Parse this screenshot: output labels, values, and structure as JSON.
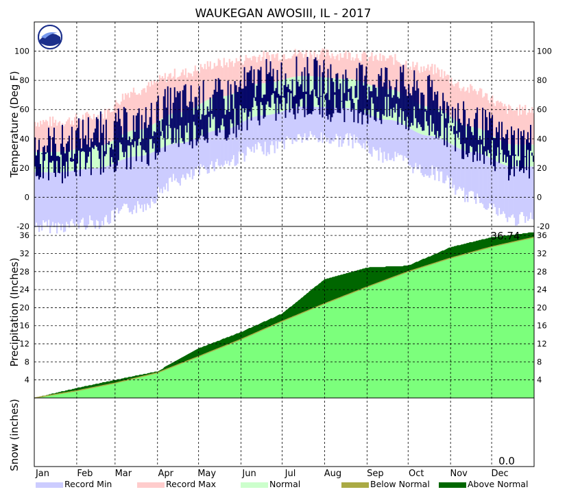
{
  "chart_data": {
    "type": "area",
    "title": "WAUKEGAN  AWOSIII, IL - 2017",
    "x_ticks": [
      "Jan",
      "Feb",
      "Mar",
      "Apr",
      "May",
      "Jun",
      "Jul",
      "Aug",
      "Sep",
      "Oct",
      "Nov",
      "Dec"
    ],
    "legend": [
      {
        "label": "Record Min",
        "color": "#ccccff"
      },
      {
        "label": "Record Max",
        "color": "#ffcccc"
      },
      {
        "label": "Normal",
        "color": "#ccffcc"
      },
      {
        "label": "Below Normal",
        "color": "#aaaa44"
      },
      {
        "label": "Above Normal",
        "color": "#006600"
      }
    ],
    "temperature": {
      "ylabel": "Temperature (Deg F)",
      "ylim": [
        -20,
        120
      ],
      "ticks": [
        "-20",
        "0",
        "20",
        "40",
        "60",
        "80",
        "100"
      ],
      "colors": {
        "record_min": "#ccccff",
        "record_max": "#ffcccc",
        "normal": "#ccffcc",
        "observed": "#000066"
      },
      "record_max_month": [
        50,
        54,
        72,
        83,
        90,
        95,
        97,
        96,
        93,
        86,
        72,
        58
      ],
      "normal_high_month": [
        31,
        35,
        46,
        58,
        69,
        78,
        83,
        81,
        74,
        62,
        48,
        36
      ],
      "normal_low_month": [
        17,
        20,
        28,
        37,
        46,
        56,
        62,
        61,
        53,
        42,
        31,
        21
      ],
      "record_min_month": [
        -15,
        -12,
        -2,
        17,
        28,
        38,
        46,
        44,
        33,
        22,
        5,
        -10
      ],
      "observed_high_month": [
        36,
        45,
        49,
        65,
        68,
        81,
        83,
        78,
        80,
        70,
        50,
        38
      ],
      "observed_low_month": [
        20,
        26,
        30,
        43,
        48,
        60,
        64,
        62,
        58,
        50,
        35,
        22
      ]
    },
    "precipitation": {
      "ylabel": "Precipitation (Inches)",
      "ylim": [
        0,
        38
      ],
      "ticks": [
        "4",
        "8",
        "12",
        "16",
        "20",
        "24",
        "28",
        "32",
        "36"
      ],
      "total_label": "36.74",
      "colors": {
        "normal": "#7cff7c",
        "above": "#006600",
        "below": "#aaaa44"
      },
      "normal_cum_month_end": [
        1.6,
        3.3,
        5.6,
        9.2,
        13.0,
        17.0,
        20.9,
        24.6,
        28.0,
        31.0,
        33.5,
        35.6
      ],
      "actual_cum_month_end": [
        2.2,
        4.0,
        5.9,
        11.0,
        14.6,
        18.7,
        26.3,
        28.9,
        29.3,
        33.4,
        35.6,
        36.74
      ]
    },
    "snow": {
      "ylabel": "Snow (inches)",
      "total_label": "0.0"
    }
  }
}
